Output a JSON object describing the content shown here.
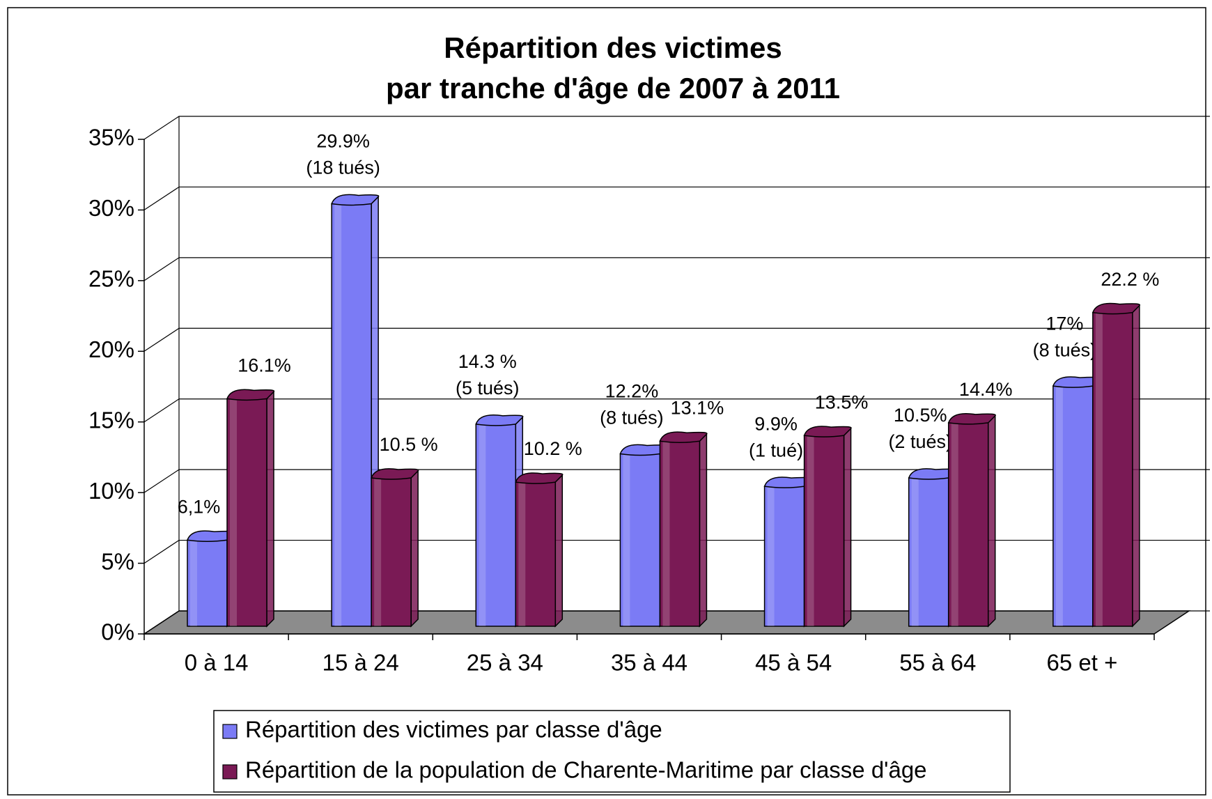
{
  "chart_data": {
    "type": "bar3d",
    "title": [
      "Répartition des victimes",
      "par tranche d'âge de 2007 à 2011"
    ],
    "categories": [
      "0 à 14",
      "15 à 24",
      "25 à 34",
      "35 à 44",
      "45 à 54",
      "55 à 64",
      "65 et +"
    ],
    "series": [
      {
        "name": "Répartition des victimes par classe d'âge",
        "color": "#7b7bf5",
        "values": [
          6.1,
          29.9,
          14.3,
          12.2,
          9.9,
          10.5,
          17
        ],
        "value_labels": [
          "6,1%",
          "29.9%",
          "14.3 %",
          "12.2%",
          "9.9%",
          "10.5%",
          "17%"
        ],
        "notes": [
          null,
          "(18 tués)",
          "(5 tués)",
          "(8 tués)",
          "(1 tué)",
          "(2 tués)",
          "(8 tués)"
        ]
      },
      {
        "name": "Répartition de la population de Charente-Maritime par classe d'âge",
        "color": "#7a1a55",
        "values": [
          16.1,
          10.5,
          10.2,
          13.1,
          13.5,
          14.4,
          22.2
        ],
        "value_labels": [
          "16.1%",
          "10.5 %",
          "10.2 %",
          "13.1%",
          "13.5%",
          "14.4%",
          "22.2 %"
        ]
      }
    ],
    "ylim": [
      0,
      35
    ],
    "yticks": [
      {
        "value": 0,
        "label": "0%"
      },
      {
        "value": 5,
        "label": "5%"
      },
      {
        "value": 10,
        "label": "10%"
      },
      {
        "value": 15,
        "label": "15%"
      },
      {
        "value": 20,
        "label": "20%"
      },
      {
        "value": 25,
        "label": "25%"
      },
      {
        "value": 30,
        "label": "30%"
      },
      {
        "value": 35,
        "label": "35%"
      }
    ],
    "grid": true,
    "legend": "bottom"
  }
}
